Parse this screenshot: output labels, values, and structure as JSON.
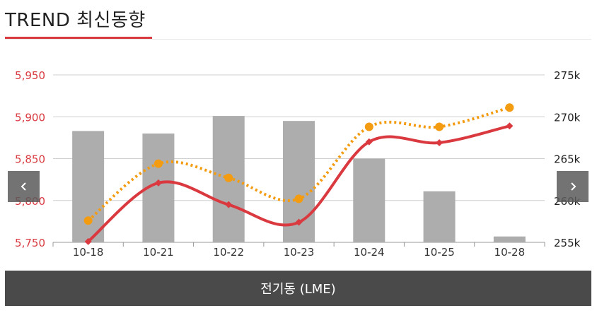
{
  "title": "TREND 최신동향",
  "footer_label": "전기동 (LME)",
  "nav": {
    "prev_icon": "chevron-left-icon",
    "next_icon": "chevron-right-icon"
  },
  "colors": {
    "accent": "#d9393f",
    "bars": "#adadad",
    "dotted": "#f39c12",
    "grid": "#cfcfcf",
    "footer": "#4a4a4a"
  },
  "chart_data": {
    "type": "bar",
    "categories": [
      "10-18",
      "10-21",
      "10-22",
      "10-23",
      "10-24",
      "10-25",
      "10-28"
    ],
    "left_axis": {
      "ticks": [
        "5,950",
        "5,900",
        "5,850",
        "5,800",
        "5,750"
      ],
      "tick_values": [
        5950,
        5900,
        5850,
        5800,
        5750
      ],
      "ylim": [
        5750,
        5950
      ]
    },
    "right_axis": {
      "ticks": [
        "275k",
        "270k",
        "265k",
        "260k",
        "255k"
      ],
      "tick_values": [
        275000,
        270000,
        265000,
        260000,
        255000
      ],
      "ylim": [
        255000,
        275000
      ]
    },
    "series": [
      {
        "kind": "bar",
        "axis": "right",
        "values": [
          268300,
          268000,
          270100,
          269500,
          265000,
          261100,
          255700
        ]
      },
      {
        "kind": "line",
        "axis": "left",
        "style": "solid",
        "marker": "diamond",
        "values": [
          5751,
          5821,
          5795,
          5774,
          5870,
          5869,
          5889
        ]
      },
      {
        "kind": "line",
        "axis": "left",
        "style": "dotted",
        "marker": "circle",
        "values": [
          5776,
          5844,
          5827,
          5802,
          5888,
          5888,
          5911
        ]
      }
    ],
    "grid": true
  }
}
